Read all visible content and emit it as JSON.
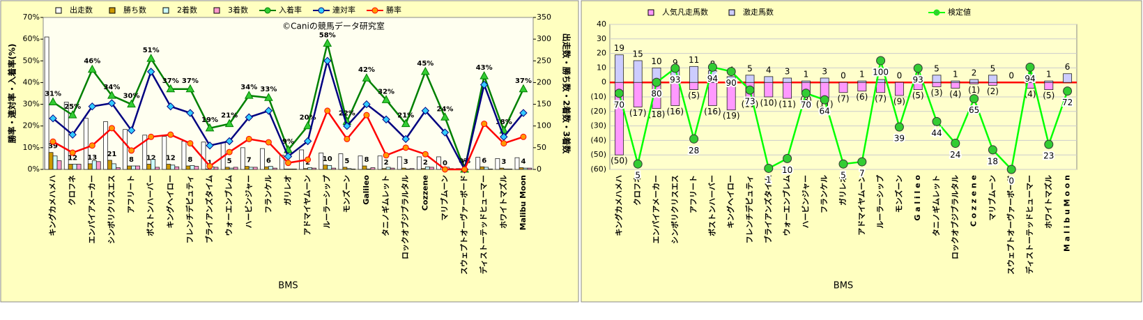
{
  "chart_data": [
    {
      "type": "bar-line",
      "watermark": "©Caniの競馬データ研究室",
      "x_label": "BMS",
      "y_label": "勝率・連対率・入着率(%)",
      "y2_label": "出走数・勝ち数・2着数・3着数",
      "categories": [
        "キングカメハメハ",
        "クロフネ",
        "エンパイアメーカー",
        "シンボリクリスエス",
        "アフリート",
        "ボストンハーバー",
        "キングヘイロー",
        "フレンチデピュティ",
        "ブライアンズタイム",
        "ウォーエンブレム",
        "ハービンジャー",
        "フランケル",
        "ガリレオ",
        "アドマイヤムーン",
        "ルーラーシップ",
        "モンズーン",
        "Galileo",
        "タニノギムレット",
        "ロックオブジブラルタル",
        "Cozzene",
        "マリブムーン",
        "スウェプトオーヴァーボード",
        "ディストーテッドヒューマー",
        "ホワイトマズル",
        "Malibu Moon"
      ],
      "ylim": [
        0,
        70
      ],
      "yticks": [
        {
          "value": 0,
          "label": "0%"
        },
        {
          "value": 10,
          "label": "10%"
        },
        {
          "value": 20,
          "label": "20%"
        },
        {
          "value": 30,
          "label": "30%"
        },
        {
          "value": 40,
          "label": "40%"
        },
        {
          "value": 50,
          "label": "50%"
        },
        {
          "value": 60,
          "label": "60%"
        },
        {
          "value": 70,
          "label": "70%"
        }
      ],
      "y2lim": [
        0,
        350
      ],
      "y2ticks": [
        0,
        50,
        100,
        150,
        200,
        250,
        300,
        350
      ],
      "grid": false,
      "bar_mode": "group",
      "plot_color": "#fffff0",
      "series": [
        {
          "name": "出走数",
          "kind": "bar",
          "axis": "y2",
          "color": "#ffffff",
          "values": [
            305,
            155,
            118,
            110,
            92,
            79,
            76,
            65,
            63,
            62,
            50,
            48,
            33,
            45,
            38,
            36,
            31,
            31,
            29,
            29,
            29,
            2,
            28,
            25,
            27
          ]
        },
        {
          "name": "勝ち数",
          "kind": "bar",
          "axis": "y2",
          "color": "#cc9900",
          "show_labels": true,
          "values": [
            39,
            12,
            13,
            21,
            8,
            12,
            12,
            8,
            1,
            5,
            7,
            6,
            1,
            2,
            10,
            5,
            8,
            2,
            3,
            2,
            0,
            0,
            6,
            3,
            4
          ]
        },
        {
          "name": "2着数",
          "kind": "bar",
          "axis": "y2",
          "color": "#ccffff",
          "values": [
            31,
            12,
            20,
            13,
            8,
            23,
            10,
            9,
            6,
            3,
            5,
            7,
            1,
            4,
            9,
            2,
            1,
            5,
            1,
            6,
            5,
            0,
            5,
            1,
            3
          ]
        },
        {
          "name": "3着数",
          "kind": "bar",
          "axis": "y2",
          "color": "#ff99cc",
          "values": [
            20,
            12,
            18,
            4,
            8,
            5,
            6,
            7,
            5,
            5,
            5,
            3,
            1,
            3,
            3,
            1,
            4,
            3,
            2,
            5,
            2,
            0,
            1,
            1,
            3
          ]
        },
        {
          "name": "入着率",
          "kind": "line",
          "axis": "y",
          "color": "#008000",
          "marker": "triangle",
          "marker_color": "#33cc33",
          "values": [
            31,
            25,
            46,
            34,
            30,
            51,
            37,
            37,
            19,
            21,
            34,
            33,
            9,
            20,
            58,
            22,
            42,
            32,
            21,
            45,
            24,
            0,
            43,
            18,
            37
          ],
          "value_labels": [
            "31%",
            "25%",
            "46%",
            "34%",
            "30%",
            "51%",
            "37%",
            "37%",
            "19%",
            "21%",
            "34%",
            "33%",
            "9%",
            "20%",
            "58%",
            "22%",
            "42%",
            "32%",
            "21%",
            "45%",
            "24%",
            "0%",
            "43%",
            "18%",
            "37%"
          ]
        },
        {
          "name": "連対率",
          "kind": "line",
          "axis": "y",
          "color": "#000080",
          "marker": "diamond",
          "marker_color": "#33ccff",
          "values": [
            23.5,
            16,
            29,
            30.5,
            18,
            45,
            29,
            26,
            11,
            13,
            24,
            27,
            6,
            13,
            50,
            20,
            30,
            23,
            14,
            27,
            17,
            0,
            39,
            15,
            26
          ]
        },
        {
          "name": "勝率",
          "kind": "line",
          "axis": "y",
          "color": "#ff0000",
          "marker": "circle",
          "marker_color": "#ff9900",
          "values": [
            12.8,
            7.7,
            11,
            19,
            8.7,
            15,
            16,
            12,
            1.5,
            8,
            14,
            12.5,
            3,
            4.5,
            27,
            14,
            25,
            6.5,
            10,
            7,
            0,
            0,
            21,
            12,
            15
          ]
        }
      ]
    },
    {
      "type": "bar-line",
      "x_label": "BMS",
      "categories": [
        "キングカメハメハ",
        "クロフネ",
        "エンパイアメーカー",
        "シンボリクリスエス",
        "アフリート",
        "ボストンハーバー",
        "キングヘイロー",
        "フレンチデピュティ",
        "ブライアンズタイム",
        "ウォーエンブレム",
        "ハービンジャー",
        "フランケル",
        "ガリレオ",
        "アドマイヤムーン",
        "ルーラーシップ",
        "モンズーン",
        "G a l i l e o",
        "タニノギムレット",
        "ロックオブジブラルタル",
        "C o z z e n e",
        "マリブムーン",
        "スウェプトオーヴァーボード",
        "ディストーテッドヒューマー",
        "ホワイトマズル",
        "M a l i b u  M o o n"
      ],
      "ylim": [
        -60,
        40
      ],
      "yticks": [
        {
          "value": -60,
          "label": "(60)"
        },
        {
          "value": -50,
          "label": "(50)"
        },
        {
          "value": -40,
          "label": "(40)"
        },
        {
          "value": -30,
          "label": "(30)"
        },
        {
          "value": -20,
          "label": "(20)"
        },
        {
          "value": -10,
          "label": "(10)"
        },
        0,
        10,
        20,
        30,
        40
      ],
      "y2lim": [
        0,
        133.3
      ],
      "grid": true,
      "zero_line_color": "#ff0000",
      "bar_mode": "overlap",
      "plot_color": "#ffffcc",
      "series": [
        {
          "name": "人気凡走馬数",
          "kind": "bar",
          "axis": "y",
          "color": "#ff99ff",
          "label_color": "#ff0000",
          "values": [
            -50,
            -17,
            -18,
            -16,
            -5,
            -16,
            -19,
            -11,
            -10,
            -11,
            -8,
            -11,
            -7,
            -6,
            -7,
            -9,
            -5,
            -3,
            -4,
            -1,
            -2,
            0,
            -4,
            -5,
            0
          ],
          "value_labels": [
            "(50)",
            "(17)",
            "(18)",
            "(16)",
            "(5)",
            "(16)",
            "(19)",
            "(11)",
            "(10)",
            "(11)",
            "(8)",
            "(11)",
            "(7)",
            "(6)",
            "(7)",
            "(9)",
            "(5)",
            "(3)",
            "(4)",
            "(1)",
            "(2)",
            null,
            "(4)",
            "(5)",
            null
          ]
        },
        {
          "name": "激走馬数",
          "kind": "bar",
          "axis": "y",
          "color": "#ccccff",
          "show_labels": true,
          "values": [
            19,
            15,
            10,
            9,
            11,
            8,
            4,
            5,
            4,
            3,
            1,
            3,
            0,
            1,
            2,
            0,
            1,
            5,
            1,
            2,
            5,
            0,
            1,
            1,
            6
          ]
        },
        {
          "name": "検定値",
          "kind": "line",
          "axis": "y2",
          "color": "#00ff00",
          "marker": "circle",
          "marker_color": "#33cc33",
          "label_color": "#008080",
          "show_labels": true,
          "values": [
            70,
            5,
            80,
            93,
            28,
            94,
            90,
            73,
            1,
            10,
            70,
            64,
            5,
            7,
            100,
            39,
            93,
            44,
            24,
            65,
            18,
            0,
            94,
            23,
            72
          ]
        }
      ]
    }
  ]
}
